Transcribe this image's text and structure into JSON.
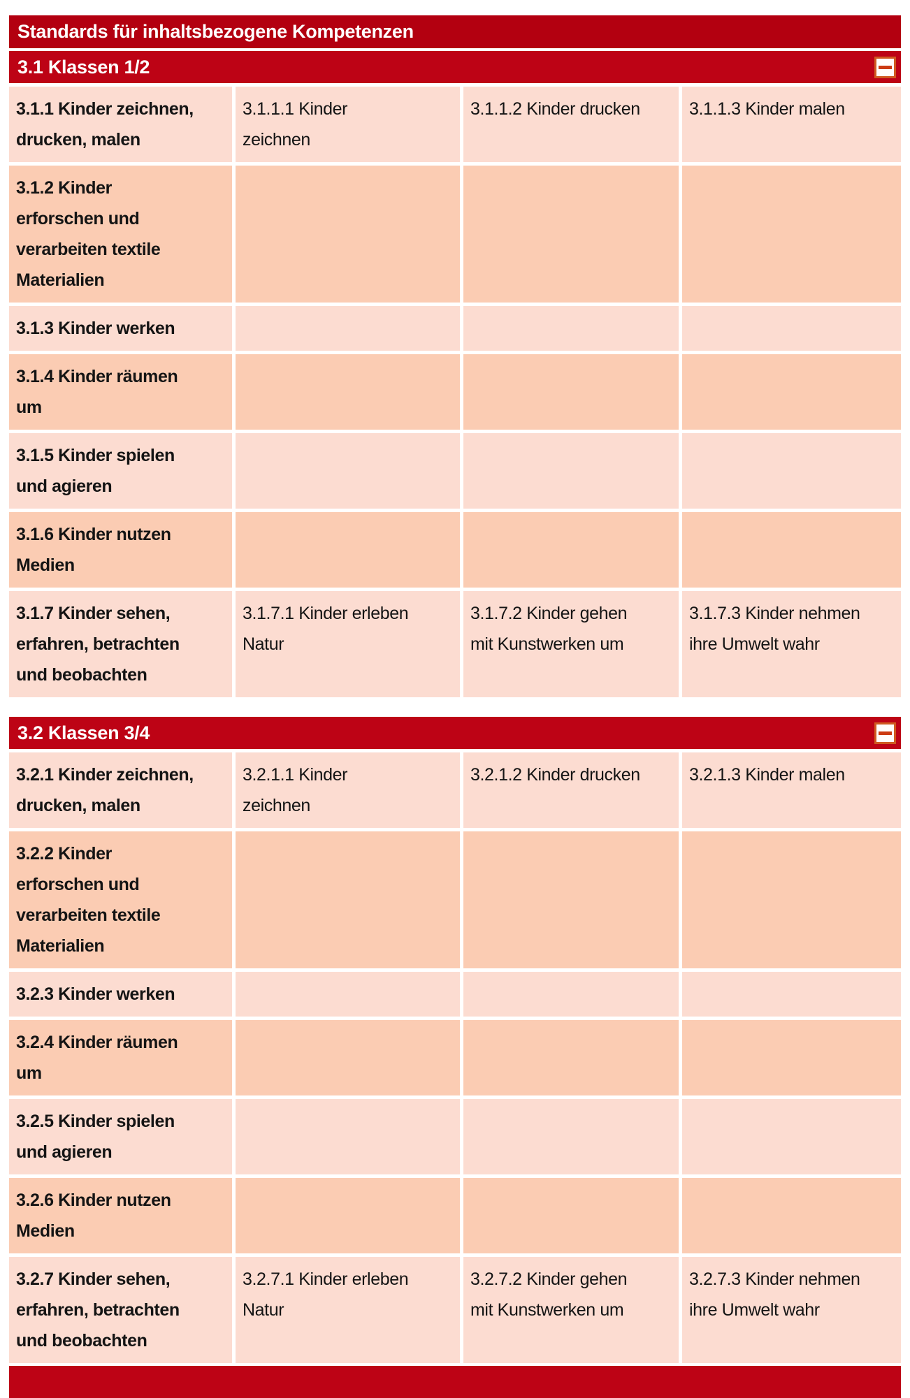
{
  "header": {
    "title": "Standards für inhaltsbezogene Kompetenzen"
  },
  "colors": {
    "main_bar": "#b30010",
    "section_bar": "#bd0315",
    "row_light": "#fcdcd1",
    "row_dark": "#fbccb3",
    "minus_button_border": "#d05a20",
    "minus_glyph": "#cc3a10",
    "text": "#141414"
  },
  "sections": [
    {
      "header": "3.1 Klassen 1/2",
      "collapse_icon": "minus-icon",
      "rows": [
        {
          "cells": [
            "3.1.1 Kinder zeichnen,\ndrucken, malen",
            "3.1.1.1 Kinder\nzeichnen",
            "3.1.1.2 Kinder drucken",
            "3.1.1.3 Kinder malen"
          ]
        },
        {
          "cells": [
            "3.1.2 Kinder\nerforschen und\nverarbeiten textile\nMaterialien",
            "",
            "",
            ""
          ]
        },
        {
          "cells": [
            "3.1.3 Kinder werken",
            "",
            "",
            ""
          ]
        },
        {
          "cells": [
            "3.1.4 Kinder räumen\num",
            "",
            "",
            ""
          ]
        },
        {
          "cells": [
            "3.1.5 Kinder spielen\nund agieren",
            "",
            "",
            ""
          ]
        },
        {
          "cells": [
            "3.1.6 Kinder nutzen\nMedien",
            "",
            "",
            ""
          ]
        },
        {
          "cells": [
            "3.1.7 Kinder sehen,\nerfahren, betrachten\nund beobachten",
            "3.1.7.1 Kinder erleben\nNatur",
            "3.1.7.2 Kinder gehen\nmit Kunstwerken um",
            "3.1.7.3 Kinder nehmen\nihre Umwelt wahr"
          ]
        }
      ]
    },
    {
      "header": "3.2 Klassen 3/4",
      "collapse_icon": "minus-icon",
      "rows": [
        {
          "cells": [
            "3.2.1 Kinder zeichnen,\ndrucken, malen",
            "3.2.1.1 Kinder\nzeichnen",
            "3.2.1.2 Kinder drucken",
            "3.2.1.3 Kinder malen"
          ]
        },
        {
          "cells": [
            "3.2.2 Kinder\nerforschen und\nverarbeiten textile\nMaterialien",
            "",
            "",
            ""
          ]
        },
        {
          "cells": [
            "3.2.3 Kinder werken",
            "",
            "",
            ""
          ]
        },
        {
          "cells": [
            "3.2.4 Kinder räumen\num",
            "",
            "",
            ""
          ]
        },
        {
          "cells": [
            "3.2.5 Kinder spielen\nund agieren",
            "",
            "",
            ""
          ]
        },
        {
          "cells": [
            "3.2.6 Kinder nutzen\nMedien",
            "",
            "",
            ""
          ]
        },
        {
          "cells": [
            "3.2.7 Kinder sehen,\nerfahren, betrachten\nund beobachten",
            "3.2.7.1 Kinder erleben\nNatur",
            "3.2.7.2 Kinder gehen\nmit Kunstwerken um",
            "3.2.7.3 Kinder nehmen\nihre Umwelt wahr"
          ]
        }
      ]
    }
  ]
}
